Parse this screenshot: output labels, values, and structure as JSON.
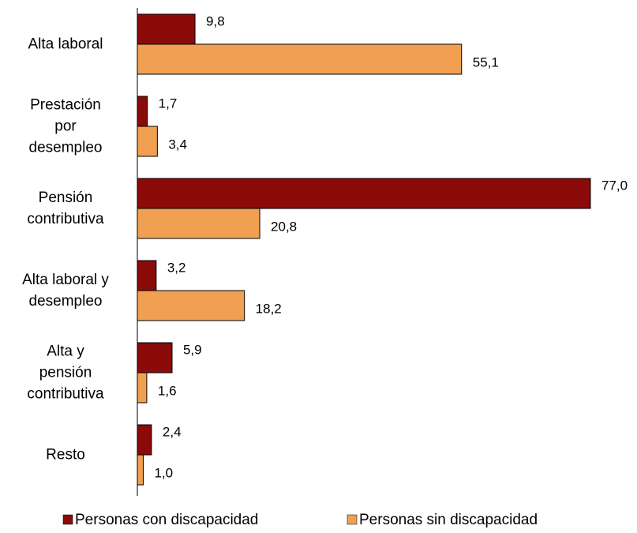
{
  "chart_data": {
    "type": "bar",
    "orientation": "horizontal",
    "categories": [
      "Alta laboral",
      "Prestación\npor\ndesempleo",
      "Pensión\ncontributiva",
      "Alta laboral y\ndesempleo",
      "Alta y\npensión\ncontributiva",
      "Resto"
    ],
    "series": [
      {
        "name": "Personas con discapacidad",
        "color": "#8b0a0a",
        "values": [
          9.8,
          1.7,
          77.0,
          3.2,
          5.9,
          2.4
        ],
        "value_labels": [
          "9,8",
          "1,7",
          "77,0",
          "3,2",
          "5,9",
          "2,4"
        ]
      },
      {
        "name": "Personas sin discapacidad",
        "color": "#f0a050",
        "values": [
          55.1,
          3.4,
          20.8,
          18.2,
          1.6,
          1.0
        ],
        "value_labels": [
          "55,1",
          "3,4",
          "20,8",
          "18,2",
          "1,6",
          "1,0"
        ]
      }
    ],
    "xlim": [
      0,
      77
    ],
    "legend": "bottom"
  }
}
